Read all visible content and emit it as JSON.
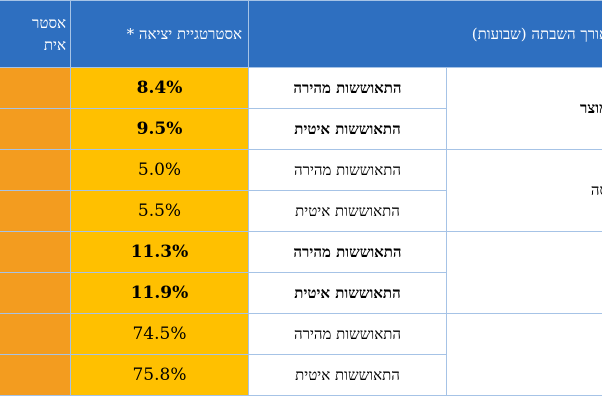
{
  "header": {
    "col_left_line1": "אסטר",
    "col_left_line2": "אית",
    "col_strategy": "אסטרטגיית יציאה *",
    "col_length": "אורך השבתה (שבועות)"
  },
  "groups": [
    {
      "label": "מוצר",
      "bold": true
    },
    {
      "label": "סה",
      "bold": false
    },
    {
      "label": "",
      "bold": true
    },
    {
      "label": "",
      "bold": false
    }
  ],
  "rows": [
    {
      "value": "8.4%",
      "recovery": "התאוששות מהירה",
      "bold": true
    },
    {
      "value": "9.5%",
      "recovery": "התאוששות איטית",
      "bold": true
    },
    {
      "value": "5.0%",
      "recovery": "התאוששות מהירה",
      "bold": false
    },
    {
      "value": "5.5%",
      "recovery": "התאוששות איטית",
      "bold": false
    },
    {
      "value": "11.3%",
      "recovery": "התאוששות מהירה",
      "bold": true
    },
    {
      "value": "11.9%",
      "recovery": "התאוששות איטית",
      "bold": true
    },
    {
      "value": "74.5%",
      "recovery": "התאוששות מהירה",
      "bold": false
    },
    {
      "value": "75.8%",
      "recovery": "התאוששות איטית",
      "bold": false
    }
  ],
  "colors": {
    "header_bg": "#2e6fc0",
    "value_bg": "#ffc000",
    "left_col_bg": "#f39c1f",
    "border": "#a6c3e6"
  }
}
